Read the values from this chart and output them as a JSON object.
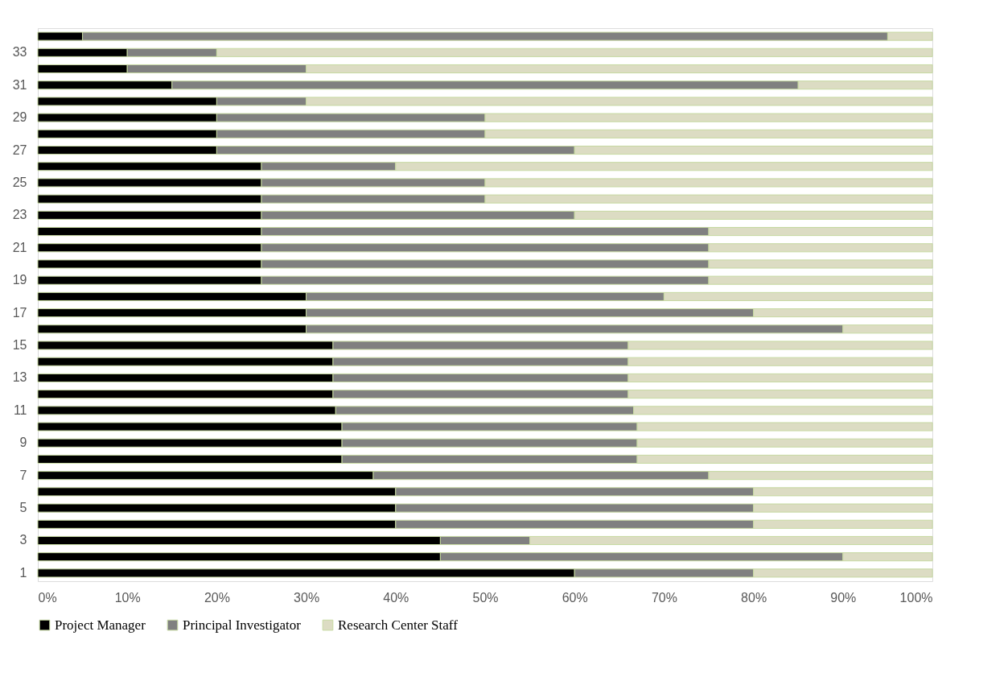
{
  "chart_data": {
    "type": "bar",
    "orientation": "horizontal",
    "stacked": true,
    "legend": "bottom",
    "grid": false,
    "categories": [
      null,
      "33",
      null,
      "31",
      null,
      "29",
      null,
      "27",
      null,
      "25",
      null,
      "23",
      null,
      "21",
      null,
      "19",
      null,
      "17",
      null,
      "15",
      null,
      "13",
      null,
      "11",
      null,
      "9",
      null,
      "7",
      null,
      "5",
      null,
      "3",
      null,
      "1"
    ],
    "xlim": [
      0,
      100
    ],
    "xticks": [
      {
        "value": 0,
        "label": "0%"
      },
      {
        "value": 10,
        "label": "10%"
      },
      {
        "value": 20,
        "label": "20%"
      },
      {
        "value": 30,
        "label": "30%"
      },
      {
        "value": 40,
        "label": "40%"
      },
      {
        "value": 50,
        "label": "50%"
      },
      {
        "value": 60,
        "label": "60%"
      },
      {
        "value": 70,
        "label": "70%"
      },
      {
        "value": 80,
        "label": "80%"
      },
      {
        "value": 90,
        "label": "90%"
      },
      {
        "value": 100,
        "label": "100%"
      }
    ],
    "series": [
      {
        "name": "Project Manager",
        "color": "#000000",
        "values": [
          5,
          10,
          10,
          15,
          20,
          20,
          20,
          20,
          25,
          25,
          25,
          25,
          25,
          25,
          25,
          25,
          30,
          30,
          30,
          33,
          33,
          33,
          33,
          33.3,
          34,
          34,
          34,
          37.5,
          40,
          40,
          40,
          45,
          45,
          60
        ]
      },
      {
        "name": "Principal Investigator",
        "color": "#808080",
        "values": [
          90,
          10,
          20,
          70,
          10,
          30,
          30,
          40,
          15,
          25,
          25,
          35,
          50,
          50,
          50,
          50,
          40,
          50,
          60,
          33,
          33,
          33,
          33,
          33.3,
          33,
          33,
          33,
          37.5,
          40,
          40,
          40,
          10,
          45,
          20
        ]
      },
      {
        "name": "Research Center Staff",
        "color": "#dcdcc3",
        "values": [
          5,
          80,
          70,
          15,
          70,
          50,
          50,
          40,
          60,
          50,
          50,
          40,
          25,
          25,
          25,
          25,
          30,
          20,
          10,
          34,
          34,
          34,
          34,
          33.4,
          33,
          33,
          33,
          25,
          20,
          20,
          20,
          45,
          10,
          20
        ]
      }
    ]
  }
}
